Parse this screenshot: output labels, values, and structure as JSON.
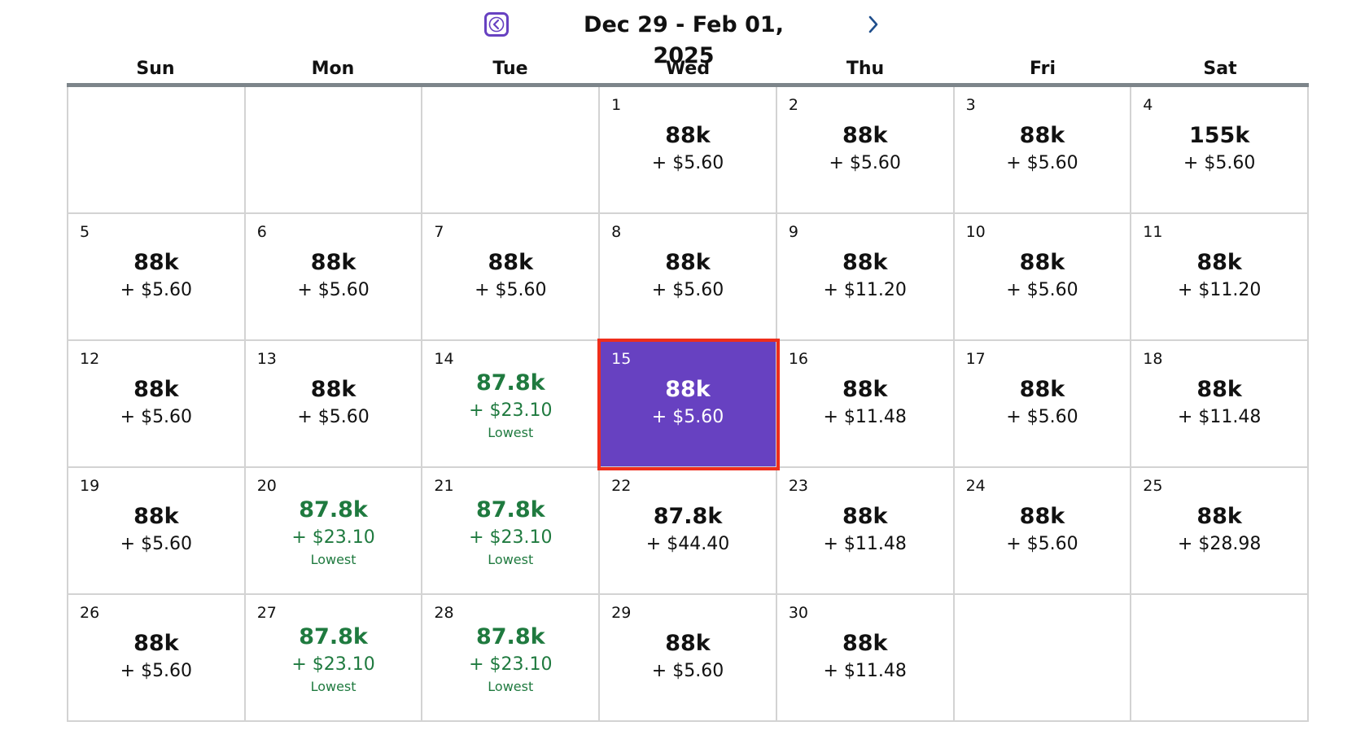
{
  "header": {
    "range_title": "Dec 29 - Feb 01, 2025",
    "prev_icon": "chevron-left-icon",
    "next_icon": "chevron-right-icon",
    "accent_color": "#6741c1"
  },
  "weekdays": [
    "Sun",
    "Mon",
    "Tue",
    "Wed",
    "Thu",
    "Fri",
    "Sat"
  ],
  "colors": {
    "selected_bg": "#6741c1",
    "selected_outline": "#ee2e1c",
    "lowest_text": "#1f7a3f"
  },
  "weeks": [
    [
      {},
      {},
      {},
      {
        "day": "1",
        "miles": "88k",
        "fee": "+ $5.60"
      },
      {
        "day": "2",
        "miles": "88k",
        "fee": "+ $5.60"
      },
      {
        "day": "3",
        "miles": "88k",
        "fee": "+ $5.60"
      },
      {
        "day": "4",
        "miles": "155k",
        "fee": "+ $5.60"
      }
    ],
    [
      {
        "day": "5",
        "miles": "88k",
        "fee": "+ $5.60"
      },
      {
        "day": "6",
        "miles": "88k",
        "fee": "+ $5.60"
      },
      {
        "day": "7",
        "miles": "88k",
        "fee": "+ $5.60"
      },
      {
        "day": "8",
        "miles": "88k",
        "fee": "+ $5.60"
      },
      {
        "day": "9",
        "miles": "88k",
        "fee": "+ $11.20"
      },
      {
        "day": "10",
        "miles": "88k",
        "fee": "+ $5.60"
      },
      {
        "day": "11",
        "miles": "88k",
        "fee": "+ $11.20"
      }
    ],
    [
      {
        "day": "12",
        "miles": "88k",
        "fee": "+ $5.60"
      },
      {
        "day": "13",
        "miles": "88k",
        "fee": "+ $5.60"
      },
      {
        "day": "14",
        "miles": "87.8k",
        "fee": "+ $23.10",
        "tag": "Lowest"
      },
      {
        "day": "15",
        "miles": "88k",
        "fee": "+ $5.60",
        "selected": true
      },
      {
        "day": "16",
        "miles": "88k",
        "fee": "+ $11.48"
      },
      {
        "day": "17",
        "miles": "88k",
        "fee": "+ $5.60"
      },
      {
        "day": "18",
        "miles": "88k",
        "fee": "+ $11.48"
      }
    ],
    [
      {
        "day": "19",
        "miles": "88k",
        "fee": "+ $5.60"
      },
      {
        "day": "20",
        "miles": "87.8k",
        "fee": "+ $23.10",
        "tag": "Lowest"
      },
      {
        "day": "21",
        "miles": "87.8k",
        "fee": "+ $23.10",
        "tag": "Lowest"
      },
      {
        "day": "22",
        "miles": "87.8k",
        "fee": "+ $44.40"
      },
      {
        "day": "23",
        "miles": "88k",
        "fee": "+ $11.48"
      },
      {
        "day": "24",
        "miles": "88k",
        "fee": "+ $5.60"
      },
      {
        "day": "25",
        "miles": "88k",
        "fee": "+ $28.98"
      }
    ],
    [
      {
        "day": "26",
        "miles": "88k",
        "fee": "+ $5.60"
      },
      {
        "day": "27",
        "miles": "87.8k",
        "fee": "+ $23.10",
        "tag": "Lowest"
      },
      {
        "day": "28",
        "miles": "87.8k",
        "fee": "+ $23.10",
        "tag": "Lowest"
      },
      {
        "day": "29",
        "miles": "88k",
        "fee": "+ $5.60"
      },
      {
        "day": "30",
        "miles": "88k",
        "fee": "+ $11.48"
      },
      {},
      {}
    ]
  ]
}
